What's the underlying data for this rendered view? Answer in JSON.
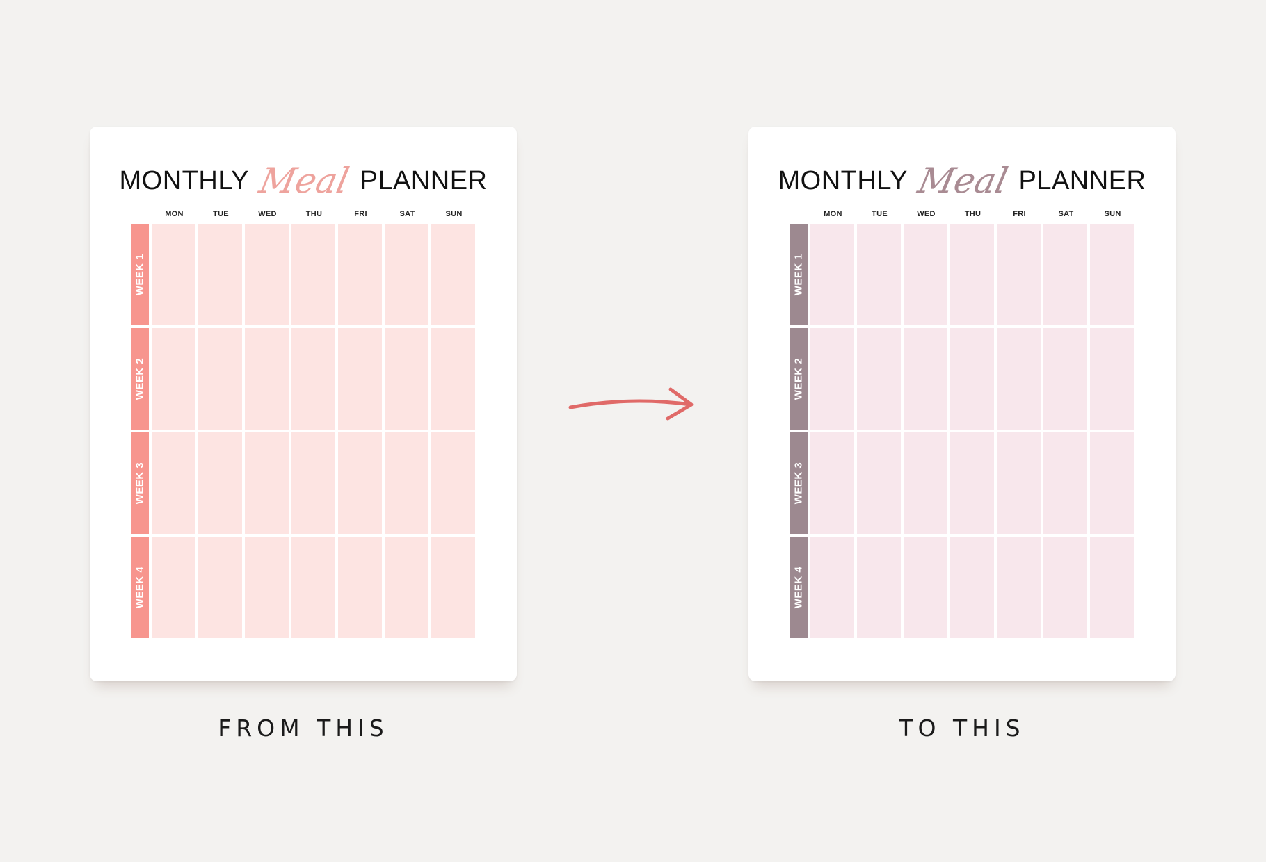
{
  "planner": {
    "title_left": "MONTHLY",
    "title_script": "Meal",
    "title_right": "PLANNER",
    "days": [
      "MON",
      "TUE",
      "WED",
      "THU",
      "FRI",
      "SAT",
      "SUN"
    ],
    "weeks": [
      "WEEK 1",
      "WEEK 2",
      "WEEK 3",
      "WEEK 4"
    ]
  },
  "before": {
    "caption": "FROM THIS",
    "accent_color": "#f7958e",
    "cell_color": "#fde4e2"
  },
  "after": {
    "caption": "TO THIS",
    "accent_color": "#9d8990",
    "cell_color": "#f8e7ec"
  },
  "arrow": {
    "color": "#e06a68",
    "icon": "arrow-right-icon"
  }
}
